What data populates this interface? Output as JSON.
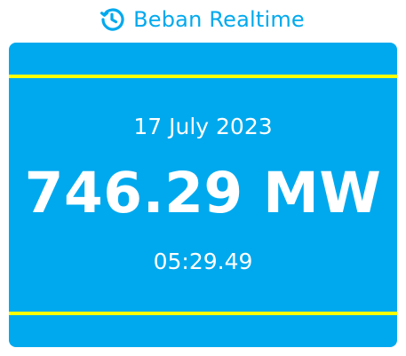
{
  "header": {
    "title": "Beban Realtime",
    "icon": "history-clock-icon"
  },
  "card": {
    "date": "17 July 2023",
    "load_value": "746.29 MW",
    "time": "05:29.49"
  },
  "colors": {
    "accent": "#00a9ee",
    "stripe": "#ffff00",
    "text_on_accent": "#ffffff"
  }
}
